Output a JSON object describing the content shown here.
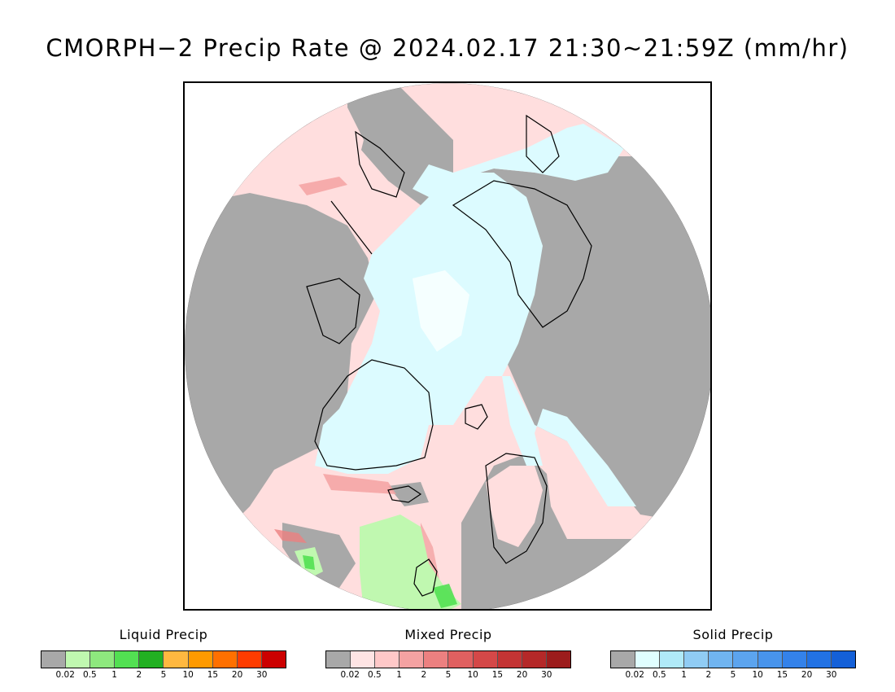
{
  "title": "CMORPH−2 Precip Rate @ 2024.02.17 21:30~21:59Z (mm/hr)",
  "colors": {
    "no_precip": "#a8a8a8",
    "background": "#ffffff",
    "coast": "#000000"
  },
  "legends": [
    {
      "title": "Liquid Precip",
      "colors": [
        "#a8a8a8",
        "#c0f8b0",
        "#8ee87e",
        "#52e052",
        "#22b022",
        "#ffb840",
        "#ff9a00",
        "#ff7000",
        "#ff3c00",
        "#cc0000"
      ],
      "ticks": [
        "0.02",
        "0.5",
        "1",
        "2",
        "5",
        "10",
        "15",
        "20",
        "30"
      ]
    },
    {
      "title": "Mixed Precip",
      "colors": [
        "#a8a8a8",
        "#ffe4e4",
        "#ffc8c8",
        "#f4a2a2",
        "#ec8080",
        "#e06060",
        "#d44848",
        "#c43434",
        "#b42828",
        "#9c1c1c"
      ],
      "ticks": [
        "0.02",
        "0.5",
        "1",
        "2",
        "5",
        "10",
        "15",
        "20",
        "30"
      ]
    },
    {
      "title": "Solid Precip",
      "colors": [
        "#a8a8a8",
        "#e0feff",
        "#b0eaf8",
        "#90ccf4",
        "#70b4f0",
        "#5ca4ee",
        "#4894ec",
        "#3482ea",
        "#2272e4",
        "#1460d8"
      ],
      "ticks": [
        "0.02",
        "0.5",
        "1",
        "2",
        "5",
        "10",
        "15",
        "20",
        "30"
      ]
    }
  ]
}
